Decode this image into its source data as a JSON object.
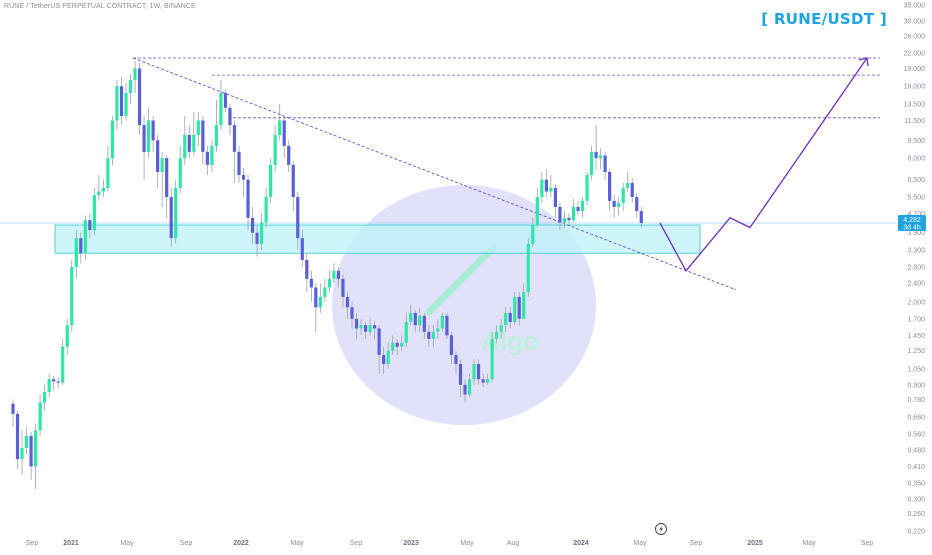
{
  "header": {
    "symbol_line": "RUNE / TetherUS PERPETUAL CONTRACT, 1W, BINANCE",
    "pair_title": "[ RUNE/USDT ]"
  },
  "price_tag": {
    "price": "4.282",
    "countdown": "3d 4h"
  },
  "watermark": {
    "text": "Algo"
  },
  "icons": {
    "bottom": "lightning-icon"
  },
  "colors": {
    "up": "#2ee6a6",
    "down": "#5b5fd6",
    "wick": "#9aa3ad",
    "zone_fill": "#bdf2f7",
    "zone_stroke": "#2ec9d6",
    "circle_fill": "#c9c9f4",
    "path": "#6a2fbd",
    "level_line": "#6a4fd0",
    "title": "#1fa2e0"
  },
  "chart_data": {
    "type": "candlestick",
    "title": "[ RUNE/USDT ]",
    "y_scale": "log",
    "ylim": [
      0.22,
      36
    ],
    "y_ticks": [
      "35.000",
      "30.000",
      "26.000",
      "22.000",
      "19.000",
      "16.000",
      "13.500",
      "11.500",
      "9.500",
      "8.000",
      "6.500",
      "5.500",
      "4.700",
      "3.900",
      "3.300",
      "2.800",
      "2.400",
      "2.000",
      "1.700",
      "1.450",
      "1.250",
      "1.050",
      "0.900",
      "0.780",
      "0.660",
      "0.560",
      "0.480",
      "0.410",
      "0.350",
      "0.300",
      "0.260",
      "0.220"
    ],
    "x_ticks": [
      "Sep",
      "2021",
      "May",
      "Sep",
      "2022",
      "May",
      "Sep",
      "2023",
      "May",
      "Aug",
      "2024",
      "May",
      "Sep",
      "2025",
      "May",
      "Sep"
    ],
    "x_ticks_bold": [
      "2021",
      "2022",
      "2023",
      "2024",
      "2025"
    ],
    "grid": false,
    "legend": "none",
    "candles": [
      [
        0.75,
        0.68,
        0.78,
        0.6
      ],
      [
        0.68,
        0.44,
        0.7,
        0.4
      ],
      [
        0.44,
        0.49,
        0.58,
        0.38
      ],
      [
        0.49,
        0.55,
        0.6,
        0.46
      ],
      [
        0.55,
        0.41,
        0.57,
        0.36
      ],
      [
        0.41,
        0.58,
        0.62,
        0.33
      ],
      [
        0.58,
        0.76,
        0.82,
        0.55
      ],
      [
        0.76,
        0.84,
        0.9,
        0.7
      ],
      [
        0.84,
        0.95,
        1.0,
        0.8
      ],
      [
        0.95,
        0.93,
        0.98,
        0.85
      ],
      [
        0.93,
        0.92,
        0.97,
        0.87
      ],
      [
        0.92,
        1.3,
        1.4,
        0.9
      ],
      [
        1.3,
        1.6,
        1.7,
        1.2
      ],
      [
        1.6,
        2.8,
        3.0,
        1.5
      ],
      [
        2.8,
        3.7,
        4.0,
        2.5
      ],
      [
        3.7,
        3.2,
        3.9,
        2.9
      ],
      [
        3.2,
        4.4,
        4.6,
        3.0
      ],
      [
        4.4,
        4.0,
        4.7,
        3.7
      ],
      [
        4.0,
        5.6,
        6.0,
        3.8
      ],
      [
        5.6,
        5.8,
        6.8,
        5.3
      ],
      [
        5.8,
        6.0,
        6.5,
        5.5
      ],
      [
        6.0,
        8.0,
        9.0,
        5.8
      ],
      [
        8.0,
        11.5,
        12.0,
        7.5
      ],
      [
        11.5,
        16.0,
        17.0,
        10.5
      ],
      [
        16.0,
        12.0,
        17.5,
        11.0
      ],
      [
        12.0,
        15.0,
        16.5,
        11.5
      ],
      [
        15.0,
        17.0,
        18.0,
        13.5
      ],
      [
        17.0,
        19.0,
        20.5,
        15.0
      ],
      [
        19.0,
        11.0,
        20.0,
        10.0
      ],
      [
        11.0,
        8.5,
        12.0,
        6.5
      ],
      [
        8.5,
        11.5,
        13.0,
        8.0
      ],
      [
        11.5,
        9.5,
        12.0,
        8.5
      ],
      [
        9.5,
        7.0,
        10.0,
        6.0
      ],
      [
        7.0,
        8.0,
        8.5,
        5.0
      ],
      [
        8.0,
        5.5,
        8.2,
        4.5
      ],
      [
        5.5,
        3.7,
        6.0,
        3.4
      ],
      [
        3.7,
        6.0,
        6.5,
        3.5
      ],
      [
        6.0,
        8.0,
        9.0,
        5.7
      ],
      [
        8.0,
        10.0,
        12.0,
        7.5
      ],
      [
        10.0,
        8.5,
        11.0,
        8.0
      ],
      [
        8.5,
        10.0,
        12.5,
        8.2
      ],
      [
        10.0,
        11.5,
        12.5,
        9.0
      ],
      [
        11.5,
        8.5,
        12.0,
        7.5
      ],
      [
        8.5,
        7.5,
        9.0,
        6.8
      ],
      [
        7.5,
        9.0,
        9.5,
        7.0
      ],
      [
        9.0,
        11.0,
        14.0,
        8.5
      ],
      [
        11.0,
        15.0,
        17.0,
        10.5
      ],
      [
        15.0,
        13.0,
        15.5,
        12.5
      ],
      [
        13.0,
        11.0,
        13.5,
        10.0
      ],
      [
        11.0,
        8.5,
        11.5,
        6.3
      ],
      [
        8.5,
        6.8,
        9.0,
        6.3
      ],
      [
        6.8,
        6.5,
        7.3,
        5.5
      ],
      [
        6.5,
        4.5,
        6.8,
        4.0
      ],
      [
        4.5,
        3.9,
        5.0,
        3.5
      ],
      [
        3.9,
        3.5,
        4.2,
        3.1
      ],
      [
        3.5,
        4.3,
        4.7,
        3.3
      ],
      [
        4.3,
        5.5,
        6.0,
        4.1
      ],
      [
        5.5,
        7.5,
        8.0,
        5.2
      ],
      [
        7.5,
        10.0,
        11.0,
        7.0
      ],
      [
        10.0,
        11.5,
        13.5,
        9.5
      ],
      [
        11.5,
        9.0,
        12.0,
        8.0
      ],
      [
        9.0,
        7.5,
        9.5,
        7.0
      ],
      [
        7.5,
        5.5,
        7.8,
        4.8
      ],
      [
        5.5,
        3.7,
        5.8,
        3.3
      ],
      [
        3.7,
        3.0,
        4.0,
        2.8
      ],
      [
        3.0,
        2.5,
        3.2,
        2.2
      ],
      [
        2.5,
        2.3,
        2.7,
        2.0
      ],
      [
        2.3,
        1.9,
        2.4,
        1.5
      ],
      [
        1.9,
        2.1,
        2.4,
        1.8
      ],
      [
        2.1,
        2.3,
        2.5,
        2.0
      ],
      [
        2.3,
        2.5,
        2.7,
        2.2
      ],
      [
        2.5,
        2.7,
        2.9,
        2.4
      ],
      [
        2.7,
        2.5,
        2.8,
        2.3
      ],
      [
        2.5,
        2.1,
        2.6,
        1.9
      ],
      [
        2.1,
        1.9,
        2.2,
        1.7
      ],
      [
        1.9,
        1.7,
        2.0,
        1.55
      ],
      [
        1.7,
        1.55,
        1.8,
        1.4
      ],
      [
        1.55,
        1.6,
        1.7,
        1.45
      ],
      [
        1.6,
        1.5,
        1.65,
        1.4
      ],
      [
        1.5,
        1.6,
        1.7,
        1.45
      ],
      [
        1.6,
        1.55,
        1.65,
        1.4
      ],
      [
        1.55,
        1.2,
        1.6,
        1.0
      ],
      [
        1.2,
        1.1,
        1.3,
        1.0
      ],
      [
        1.1,
        1.25,
        1.35,
        1.05
      ],
      [
        1.25,
        1.35,
        1.45,
        1.2
      ],
      [
        1.35,
        1.3,
        1.4,
        1.2
      ],
      [
        1.3,
        1.35,
        1.45,
        1.25
      ],
      [
        1.35,
        1.65,
        1.8,
        1.3
      ],
      [
        1.65,
        1.8,
        1.95,
        1.6
      ],
      [
        1.8,
        1.6,
        1.85,
        1.5
      ],
      [
        1.6,
        1.75,
        1.9,
        1.5
      ],
      [
        1.75,
        1.5,
        1.8,
        1.4
      ],
      [
        1.5,
        1.4,
        1.6,
        1.3
      ],
      [
        1.4,
        1.5,
        1.6,
        1.3
      ],
      [
        1.5,
        1.55,
        1.7,
        1.4
      ],
      [
        1.55,
        1.75,
        1.8,
        1.5
      ],
      [
        1.75,
        1.45,
        1.8,
        1.4
      ],
      [
        1.45,
        1.2,
        1.5,
        1.1
      ],
      [
        1.2,
        1.1,
        1.25,
        1.0
      ],
      [
        1.1,
        0.9,
        1.15,
        0.8
      ],
      [
        0.9,
        0.82,
        0.95,
        0.76
      ],
      [
        0.82,
        0.95,
        1.0,
        0.8
      ],
      [
        0.95,
        1.1,
        1.15,
        0.9
      ],
      [
        1.1,
        0.95,
        1.15,
        0.9
      ],
      [
        0.95,
        0.92,
        1.0,
        0.88
      ],
      [
        0.92,
        0.95,
        1.0,
        0.9
      ],
      [
        0.95,
        1.4,
        1.5,
        0.93
      ],
      [
        1.4,
        1.5,
        1.6,
        1.35
      ],
      [
        1.5,
        1.6,
        1.7,
        1.4
      ],
      [
        1.6,
        1.8,
        1.9,
        1.5
      ],
      [
        1.8,
        1.65,
        1.9,
        1.55
      ],
      [
        1.65,
        2.1,
        2.2,
        1.6
      ],
      [
        2.1,
        1.7,
        2.2,
        1.6
      ],
      [
        1.7,
        2.2,
        2.4,
        1.7
      ],
      [
        2.2,
        3.5,
        3.7,
        2.1
      ],
      [
        3.5,
        4.2,
        4.5,
        3.4
      ],
      [
        4.2,
        5.5,
        6.0,
        4.1
      ],
      [
        5.5,
        6.5,
        7.0,
        5.2
      ],
      [
        6.5,
        5.8,
        7.2,
        5.5
      ],
      [
        5.8,
        6.0,
        6.8,
        5.5
      ],
      [
        6.0,
        5.0,
        6.2,
        4.5
      ],
      [
        5.0,
        4.3,
        5.2,
        4.0
      ],
      [
        4.3,
        4.5,
        4.8,
        4.1
      ],
      [
        4.5,
        4.4,
        4.7,
        4.2
      ],
      [
        4.4,
        5.0,
        5.4,
        4.3
      ],
      [
        5.0,
        4.8,
        5.3,
        4.6
      ],
      [
        4.8,
        5.3,
        5.5,
        4.5
      ],
      [
        5.3,
        6.8,
        7.0,
        5.1
      ],
      [
        6.8,
        8.5,
        9.0,
        6.5
      ],
      [
        8.5,
        8.0,
        11.0,
        7.2
      ],
      [
        8.0,
        8.2,
        8.8,
        7.2
      ],
      [
        8.2,
        7.0,
        8.5,
        6.5
      ],
      [
        7.0,
        5.3,
        7.2,
        4.8
      ],
      [
        5.3,
        5.0,
        5.6,
        4.5
      ],
      [
        5.0,
        5.2,
        5.5,
        4.6
      ],
      [
        5.2,
        6.0,
        6.3,
        4.8
      ],
      [
        6.0,
        6.3,
        7.0,
        5.8
      ],
      [
        6.3,
        5.5,
        6.6,
        5.2
      ],
      [
        5.5,
        4.8,
        5.7,
        4.5
      ],
      [
        4.8,
        4.28,
        5.0,
        4.1
      ]
    ],
    "zone": {
      "x_from": "Sep",
      "x_to": "Sep",
      "y_low": 3.2,
      "y_high": 4.2
    },
    "horizontal_levels": [
      21.0,
      17.8,
      11.8
    ],
    "trendline": {
      "from": 21.0,
      "to": 2.25
    },
    "projection_path": [
      4.282,
      2.7,
      4.5,
      4.1,
      21.0
    ],
    "annotations": []
  }
}
